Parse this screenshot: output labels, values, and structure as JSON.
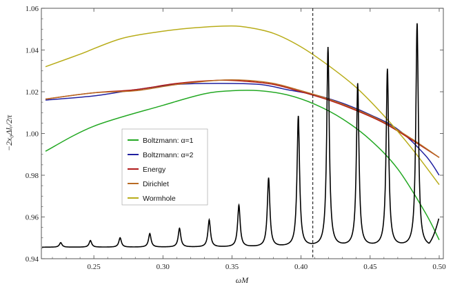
{
  "chart_data": {
    "type": "line",
    "xlabel": "ωM",
    "ylabel": "−2x₀Δlᵣ/2π",
    "xlim": [
      0.212,
      0.503
    ],
    "ylim": [
      0.94,
      1.06
    ],
    "xticks": [
      {
        "value": 0.25,
        "label": "0.25"
      },
      {
        "value": 0.3,
        "label": "0.30"
      },
      {
        "value": 0.35,
        "label": "0.35"
      },
      {
        "value": 0.4,
        "label": "0.40"
      },
      {
        "value": 0.45,
        "label": "0.45"
      },
      {
        "value": 0.5,
        "label": "0.50"
      }
    ],
    "yticks": [
      {
        "value": 0.94,
        "label": "0.94"
      },
      {
        "value": 0.96,
        "label": "0.96"
      },
      {
        "value": 0.98,
        "label": "0.98"
      },
      {
        "value": 1.0,
        "label": "1.00"
      },
      {
        "value": 1.02,
        "label": "1.02"
      },
      {
        "value": 1.04,
        "label": "1.04"
      },
      {
        "value": 1.06,
        "label": "1.06"
      }
    ],
    "vline": {
      "x": 0.4085,
      "style": "dashed"
    },
    "legend_position": "center-left",
    "series": [
      {
        "name": "Boltzmann: α=1",
        "color": "#22a822",
        "x": [
          0.215,
          0.25,
          0.3,
          0.33,
          0.35,
          0.37,
          0.39,
          0.41,
          0.43,
          0.45,
          0.47,
          0.49,
          0.5
        ],
        "y": [
          0.9915,
          1.0035,
          1.0135,
          1.019,
          1.0205,
          1.0205,
          1.0185,
          1.014,
          1.007,
          0.997,
          0.983,
          0.962,
          0.949
        ]
      },
      {
        "name": "Boltzmann: α=2",
        "color": "#1f1fa0",
        "x": [
          0.215,
          0.25,
          0.28,
          0.31,
          0.34,
          0.37,
          0.39,
          0.41,
          0.43,
          0.45,
          0.47,
          0.49,
          0.5
        ],
        "y": [
          1.016,
          1.018,
          1.021,
          1.0235,
          1.024,
          1.0235,
          1.021,
          1.0185,
          1.0145,
          1.009,
          1.002,
          0.9895,
          0.98
        ]
      },
      {
        "name": "Energy",
        "color": "#b01818",
        "x": [
          0.215,
          0.25,
          0.28,
          0.31,
          0.34,
          0.36,
          0.38,
          0.4,
          0.42,
          0.44,
          0.46,
          0.48,
          0.5
        ],
        "y": [
          1.0165,
          1.0195,
          1.021,
          1.024,
          1.0255,
          1.025,
          1.0235,
          1.02,
          1.016,
          1.011,
          1.005,
          0.997,
          0.9885
        ]
      },
      {
        "name": "Dirichlet",
        "color": "#b86a22",
        "x": [
          0.215,
          0.25,
          0.28,
          0.31,
          0.34,
          0.36,
          0.38,
          0.4,
          0.42,
          0.44,
          0.46,
          0.48,
          0.5
        ],
        "y": [
          1.0165,
          1.0195,
          1.0205,
          1.0235,
          1.0255,
          1.0255,
          1.024,
          1.0205,
          1.0165,
          1.0115,
          1.0055,
          0.9975,
          0.9885
        ]
      },
      {
        "name": "Wormhole",
        "color": "#b8ac18",
        "x": [
          0.215,
          0.24,
          0.27,
          0.3,
          0.32,
          0.345,
          0.36,
          0.38,
          0.4,
          0.42,
          0.44,
          0.46,
          0.48,
          0.5
        ],
        "y": [
          1.032,
          1.038,
          1.0455,
          1.049,
          1.0505,
          1.0515,
          1.051,
          1.048,
          1.0415,
          1.0325,
          1.022,
          1.0085,
          0.993,
          0.9755
        ]
      }
    ],
    "resonance_series": {
      "color": "#000000",
      "baseline": 0.9455,
      "x_end": 0.5,
      "y_end": 0.96,
      "peaks": [
        {
          "x": 0.226,
          "y": 0.9477
        },
        {
          "x": 0.2475,
          "y": 0.9487
        },
        {
          "x": 0.269,
          "y": 0.95
        },
        {
          "x": 0.2905,
          "y": 0.952
        },
        {
          "x": 0.312,
          "y": 0.9545
        },
        {
          "x": 0.3335,
          "y": 0.9585
        },
        {
          "x": 0.355,
          "y": 0.9655
        },
        {
          "x": 0.3765,
          "y": 0.9785
        },
        {
          "x": 0.398,
          "y": 1.008
        },
        {
          "x": 0.4195,
          "y": 1.041
        },
        {
          "x": 0.441,
          "y": 1.0235
        },
        {
          "x": 0.4625,
          "y": 1.0305
        },
        {
          "x": 0.484,
          "y": 1.0525
        }
      ]
    }
  }
}
